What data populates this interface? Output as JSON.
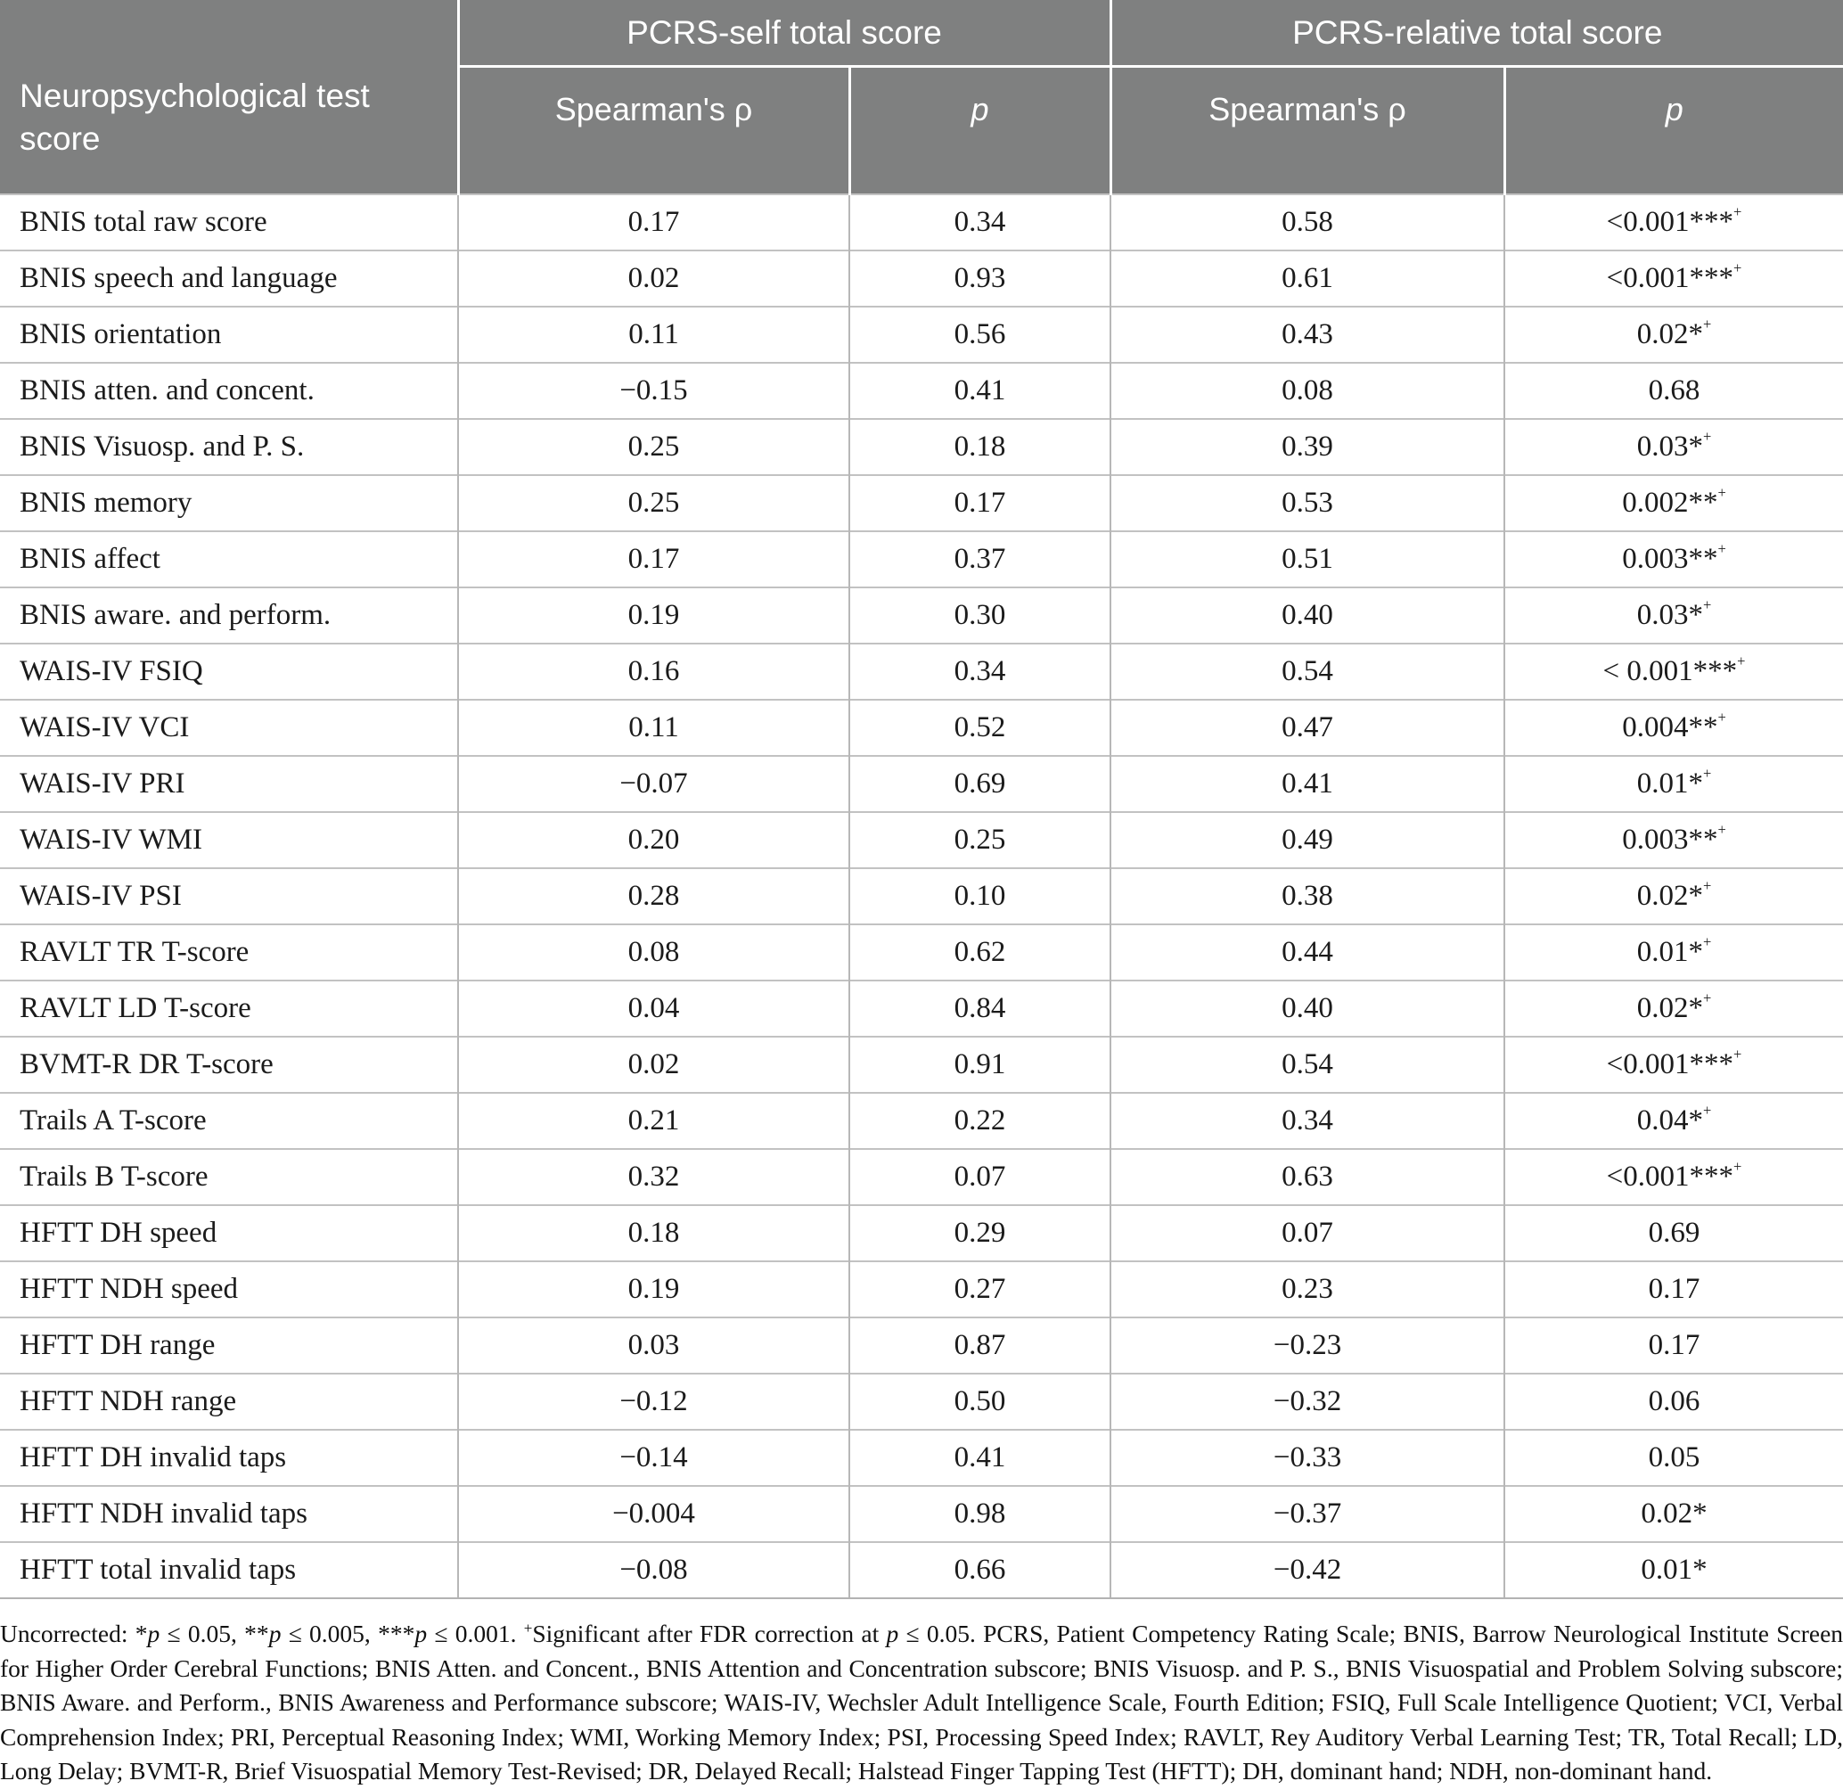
{
  "table": {
    "corner_header": "Neuropsychological test score",
    "groups": [
      {
        "label": "PCRS-self total score"
      },
      {
        "label": "PCRS-relative total score"
      }
    ],
    "subheaders": [
      "Spearman's ρ",
      "p",
      "Spearman's ρ",
      "p"
    ],
    "rows": [
      {
        "label": "BNIS total raw score",
        "self_rho": "0.17",
        "self_p": "0.34",
        "rel_rho": "0.58",
        "rel_p": "<0.001***",
        "rel_p_sup": "+"
      },
      {
        "label": "BNIS speech and language",
        "self_rho": "0.02",
        "self_p": "0.93",
        "rel_rho": "0.61",
        "rel_p": "<0.001***",
        "rel_p_sup": "+"
      },
      {
        "label": "BNIS orientation",
        "self_rho": "0.11",
        "self_p": "0.56",
        "rel_rho": "0.43",
        "rel_p": "0.02*",
        "rel_p_sup": "+"
      },
      {
        "label": "BNIS atten. and concent.",
        "self_rho": "−0.15",
        "self_p": "0.41",
        "rel_rho": "0.08",
        "rel_p": "0.68",
        "rel_p_sup": ""
      },
      {
        "label": "BNIS Visuosp. and P. S.",
        "self_rho": "0.25",
        "self_p": "0.18",
        "rel_rho": "0.39",
        "rel_p": "0.03*",
        "rel_p_sup": "+"
      },
      {
        "label": "BNIS memory",
        "self_rho": "0.25",
        "self_p": "0.17",
        "rel_rho": "0.53",
        "rel_p": "0.002**",
        "rel_p_sup": "+"
      },
      {
        "label": "BNIS affect",
        "self_rho": "0.17",
        "self_p": "0.37",
        "rel_rho": "0.51",
        "rel_p": "0.003**",
        "rel_p_sup": "+"
      },
      {
        "label": "BNIS aware. and perform.",
        "self_rho": "0.19",
        "self_p": "0.30",
        "rel_rho": "0.40",
        "rel_p": "0.03*",
        "rel_p_sup": "+"
      },
      {
        "label": "WAIS-IV FSIQ",
        "self_rho": "0.16",
        "self_p": "0.34",
        "rel_rho": "0.54",
        "rel_p": "< 0.001***",
        "rel_p_sup": "+"
      },
      {
        "label": "WAIS-IV VCI",
        "self_rho": "0.11",
        "self_p": "0.52",
        "rel_rho": "0.47",
        "rel_p": "0.004**",
        "rel_p_sup": "+"
      },
      {
        "label": "WAIS-IV PRI",
        "self_rho": "−0.07",
        "self_p": "0.69",
        "rel_rho": "0.41",
        "rel_p": "0.01*",
        "rel_p_sup": "+"
      },
      {
        "label": "WAIS-IV WMI",
        "self_rho": "0.20",
        "self_p": "0.25",
        "rel_rho": "0.49",
        "rel_p": "0.003**",
        "rel_p_sup": "+"
      },
      {
        "label": "WAIS-IV PSI",
        "self_rho": "0.28",
        "self_p": "0.10",
        "rel_rho": "0.38",
        "rel_p": "0.02*",
        "rel_p_sup": "+"
      },
      {
        "label": "RAVLT TR T-score",
        "self_rho": "0.08",
        "self_p": "0.62",
        "rel_rho": "0.44",
        "rel_p": "0.01*",
        "rel_p_sup": "+"
      },
      {
        "label": "RAVLT LD T-score",
        "self_rho": "0.04",
        "self_p": "0.84",
        "rel_rho": "0.40",
        "rel_p": "0.02*",
        "rel_p_sup": "+"
      },
      {
        "label": "BVMT-R DR T-score",
        "self_rho": "0.02",
        "self_p": "0.91",
        "rel_rho": "0.54",
        "rel_p": "<0.001***",
        "rel_p_sup": "+"
      },
      {
        "label": "Trails A T-score",
        "self_rho": "0.21",
        "self_p": "0.22",
        "rel_rho": "0.34",
        "rel_p": "0.04*",
        "rel_p_sup": "+"
      },
      {
        "label": "Trails B T-score",
        "self_rho": "0.32",
        "self_p": "0.07",
        "rel_rho": "0.63",
        "rel_p": "<0.001***",
        "rel_p_sup": "+"
      },
      {
        "label": "HFTT DH speed",
        "self_rho": "0.18",
        "self_p": "0.29",
        "rel_rho": "0.07",
        "rel_p": "0.69",
        "rel_p_sup": ""
      },
      {
        "label": "HFTT NDH speed",
        "self_rho": "0.19",
        "self_p": "0.27",
        "rel_rho": "0.23",
        "rel_p": "0.17",
        "rel_p_sup": ""
      },
      {
        "label": "HFTT DH range",
        "self_rho": "0.03",
        "self_p": "0.87",
        "rel_rho": "−0.23",
        "rel_p": "0.17",
        "rel_p_sup": ""
      },
      {
        "label": "HFTT NDH range",
        "self_rho": "−0.12",
        "self_p": "0.50",
        "rel_rho": "−0.32",
        "rel_p": "0.06",
        "rel_p_sup": ""
      },
      {
        "label": "HFTT DH invalid taps",
        "self_rho": "−0.14",
        "self_p": "0.41",
        "rel_rho": "−0.33",
        "rel_p": "0.05",
        "rel_p_sup": ""
      },
      {
        "label": "HFTT NDH invalid taps",
        "self_rho": "−0.004",
        "self_p": "0.98",
        "rel_rho": "−0.37",
        "rel_p": "0.02*",
        "rel_p_sup": ""
      },
      {
        "label": "HFTT total invalid taps",
        "self_rho": "−0.08",
        "self_p": "0.66",
        "rel_rho": "−0.42",
        "rel_p": "0.01*",
        "rel_p_sup": ""
      }
    ]
  },
  "footnote": {
    "segments": [
      {
        "text": "Uncorrected: *"
      },
      {
        "text": "p",
        "italic": true
      },
      {
        "text": " ≤ 0.05, **"
      },
      {
        "text": "p",
        "italic": true
      },
      {
        "text": " ≤ 0.005, ***"
      },
      {
        "text": "p",
        "italic": true
      },
      {
        "text": " ≤ 0.001. "
      },
      {
        "text": "+",
        "sup": true
      },
      {
        "text": "Significant after FDR correction at "
      },
      {
        "text": "p",
        "italic": true
      },
      {
        "text": " ≤ 0.05. PCRS, Patient Competency Rating Scale; BNIS, Barrow Neurological Institute Screen for Higher Order Cerebral Functions; BNIS Atten. and Concent., BNIS Attention and Concentration subscore; BNIS Visuosp. and P. S., BNIS Visuospatial and Problem Solving subscore; BNIS Aware. and Perform., BNIS Awareness and Performance subscore; WAIS-IV, Wechsler Adult Intelligence Scale, Fourth Edition; FSIQ, Full Scale Intelligence Quotient; VCI, Verbal Comprehension Index; PRI, Perceptual Reasoning Index; WMI, Working Memory Index; PSI, Processing Speed Index; RAVLT, Rey Auditory Verbal Learning Test; TR, Total Recall; LD, Long Delay; BVMT-R, Brief Visuospatial Memory Test-Revised; DR, Delayed Recall; Halstead Finger Tapping Test (HFTT); DH, dominant hand; NDH, non-dominant hand."
      }
    ]
  },
  "colors": {
    "header_bg": "#7f8080",
    "header_text": "#ffffff",
    "grid_line": "#b7b7b7",
    "body_text": "#1b1b1b"
  }
}
